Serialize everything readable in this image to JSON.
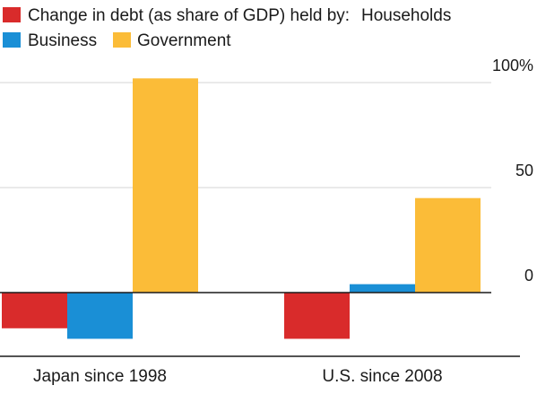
{
  "chart_data": {
    "type": "bar",
    "title": "Change in debt (as share of GDP) held by:",
    "legend_position": "top-left",
    "categories": [
      "Japan since 1998",
      "U.S. since 2008"
    ],
    "series": [
      {
        "name": "Households",
        "color": "#d92b2b",
        "values": [
          -17,
          -22
        ]
      },
      {
        "name": "Business",
        "color": "#1a8fd6",
        "values": [
          -22,
          4
        ]
      },
      {
        "name": "Government",
        "color": "#fbbc38",
        "values": [
          102,
          45
        ]
      }
    ],
    "ylim": [
      -30,
      112
    ],
    "yticks": [
      {
        "value": 100,
        "label": "100%"
      },
      {
        "value": 50,
        "label": "50"
      },
      {
        "value": 0,
        "label": "0"
      }
    ],
    "grid": true
  }
}
